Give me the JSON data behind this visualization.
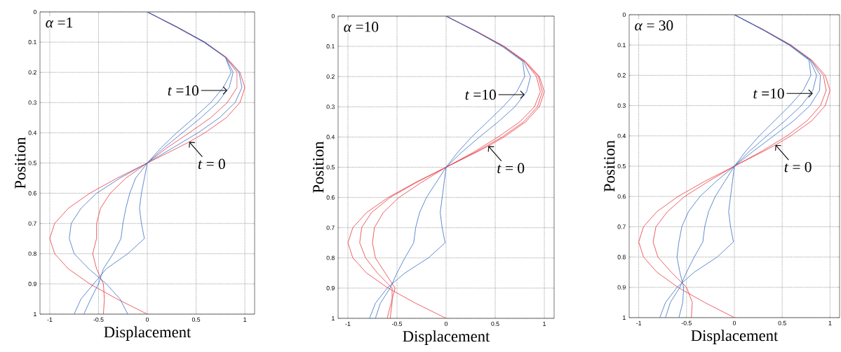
{
  "chart_data": [
    {
      "type": "line",
      "xlabel": "Displacement",
      "ylabel": "Position",
      "xlim": [
        -1.1,
        1.1
      ],
      "ylim": [
        1,
        0
      ],
      "xticks": [
        -1,
        -0.5,
        0,
        0.5,
        1
      ],
      "yticks": [
        0,
        0.1,
        0.2,
        0.3,
        0.4,
        0.5,
        0.6,
        0.7,
        0.8,
        0.9,
        1
      ],
      "grid": true,
      "annotations": [
        "*α* =1",
        {
          "text": "*t* =10",
          "x": 0.82,
          "y": 0.26
        },
        {
          "text": "*t* = 0",
          "x": 0.43,
          "y": 0.43
        }
      ],
      "series": [
        {
          "color": "#e8393f",
          "x": [
            0,
            0.31,
            0.59,
            0.81,
            0.95,
            1,
            0.95,
            0.81,
            0.59,
            0.43,
            0.31,
            0,
            -0.31,
            -0.59,
            -0.81,
            -0.95,
            -1,
            -0.95,
            -0.81,
            -0.59,
            -0.31,
            0
          ],
          "values": [
            0,
            0.05,
            0.1,
            0.15,
            0.2,
            0.25,
            0.3,
            0.35,
            0.4,
            0.43,
            0.45,
            0.5,
            0.55,
            0.6,
            0.65,
            0.7,
            0.75,
            0.8,
            0.85,
            0.9,
            0.95,
            1
          ]
        },
        {
          "color": "#3a6fc4",
          "x": [
            0,
            0.3,
            0.59,
            0.8,
            0.94,
            0.97,
            0.9,
            0.74,
            0.52,
            0.26,
            0,
            -0.28,
            -0.52,
            -0.68,
            -0.78,
            -0.8,
            -0.75,
            -0.6,
            -0.42,
            -0.28,
            -0.2
          ],
          "values": [
            0,
            0.05,
            0.1,
            0.15,
            0.2,
            0.25,
            0.3,
            0.35,
            0.4,
            0.45,
            0.5,
            0.55,
            0.6,
            0.65,
            0.7,
            0.75,
            0.8,
            0.85,
            0.9,
            0.95,
            1
          ]
        },
        {
          "color": "#e8393f",
          "x": [
            0,
            0.3,
            0.58,
            0.8,
            0.92,
            0.92,
            0.82,
            0.65,
            0.43,
            0.2,
            0,
            -0.22,
            -0.38,
            -0.48,
            -0.52,
            -0.52,
            -0.56,
            -0.52,
            -0.45,
            -0.44,
            -0.45
          ],
          "values": [
            0,
            0.05,
            0.1,
            0.15,
            0.2,
            0.25,
            0.3,
            0.35,
            0.4,
            0.45,
            0.5,
            0.55,
            0.6,
            0.65,
            0.7,
            0.75,
            0.8,
            0.85,
            0.9,
            0.95,
            1
          ]
        },
        {
          "color": "#3a6fc4",
          "x": [
            0,
            0.3,
            0.58,
            0.8,
            0.88,
            0.84,
            0.72,
            0.55,
            0.36,
            0.17,
            0,
            -0.12,
            -0.18,
            -0.22,
            -0.25,
            -0.27,
            -0.35,
            -0.45,
            -0.5,
            -0.58,
            -0.65
          ],
          "values": [
            0,
            0.05,
            0.1,
            0.15,
            0.2,
            0.25,
            0.3,
            0.35,
            0.4,
            0.45,
            0.5,
            0.55,
            0.6,
            0.65,
            0.7,
            0.75,
            0.8,
            0.85,
            0.9,
            0.95,
            1
          ]
        },
        {
          "color": "#3a6fc4",
          "x": [
            0,
            0.3,
            0.58,
            0.8,
            0.86,
            0.78,
            0.65,
            0.48,
            0.3,
            0.14,
            0,
            -0.03,
            -0.06,
            -0.08,
            -0.06,
            -0.03,
            -0.2,
            -0.42,
            -0.55,
            -0.68,
            -0.75
          ],
          "values": [
            0,
            0.05,
            0.1,
            0.15,
            0.2,
            0.25,
            0.3,
            0.35,
            0.4,
            0.45,
            0.5,
            0.55,
            0.6,
            0.65,
            0.7,
            0.75,
            0.8,
            0.85,
            0.9,
            0.95,
            1
          ]
        }
      ]
    },
    {
      "type": "line",
      "xlabel": "Displacement",
      "ylabel": "Position",
      "xlim": [
        -1.1,
        1.1
      ],
      "ylim": [
        1,
        0
      ],
      "xticks": [
        -1,
        -0.5,
        0,
        0.5,
        1
      ],
      "yticks": [
        0,
        0.1,
        0.2,
        0.3,
        0.4,
        0.5,
        0.6,
        0.7,
        0.8,
        0.9,
        1
      ],
      "grid": true,
      "annotations": [
        "*α* =10",
        {
          "text": "*t* =10",
          "x": 0.8,
          "y": 0.26
        },
        {
          "text": "*t* = 0",
          "x": 0.43,
          "y": 0.43
        }
      ],
      "series": [
        {
          "color": "#e8393f",
          "x": [
            0,
            0.31,
            0.59,
            0.81,
            0.95,
            1,
            0.95,
            0.81,
            0.59,
            0.43,
            0.31,
            0,
            -0.31,
            -0.59,
            -0.81,
            -0.95,
            -1,
            -0.95,
            -0.81,
            -0.59,
            -0.31,
            0
          ],
          "values": [
            0,
            0.05,
            0.1,
            0.15,
            0.2,
            0.25,
            0.3,
            0.35,
            0.4,
            0.43,
            0.45,
            0.5,
            0.55,
            0.6,
            0.65,
            0.7,
            0.75,
            0.8,
            0.85,
            0.9,
            0.95,
            1
          ]
        },
        {
          "color": "#e8393f",
          "x": [
            0,
            0.3,
            0.59,
            0.8,
            0.94,
            0.98,
            0.93,
            0.79,
            0.57,
            0.3,
            0,
            -0.3,
            -0.57,
            -0.76,
            -0.86,
            -0.88,
            -0.82,
            -0.7,
            -0.55,
            -0.55,
            -0.57
          ],
          "values": [
            0,
            0.05,
            0.1,
            0.15,
            0.2,
            0.25,
            0.3,
            0.35,
            0.4,
            0.45,
            0.5,
            0.55,
            0.6,
            0.65,
            0.7,
            0.75,
            0.8,
            0.85,
            0.9,
            0.95,
            1
          ]
        },
        {
          "color": "#e8393f",
          "x": [
            0,
            0.3,
            0.59,
            0.8,
            0.92,
            0.96,
            0.9,
            0.75,
            0.53,
            0.28,
            0,
            -0.25,
            -0.48,
            -0.64,
            -0.73,
            -0.75,
            -0.72,
            -0.62,
            -0.52,
            -0.56,
            -0.6
          ],
          "values": [
            0,
            0.05,
            0.1,
            0.15,
            0.2,
            0.25,
            0.3,
            0.35,
            0.4,
            0.45,
            0.5,
            0.55,
            0.6,
            0.65,
            0.7,
            0.75,
            0.8,
            0.85,
            0.9,
            0.95,
            1
          ]
        },
        {
          "color": "#3a6fc4",
          "x": [
            0,
            0.3,
            0.58,
            0.79,
            0.86,
            0.82,
            0.7,
            0.53,
            0.34,
            0.16,
            0,
            -0.1,
            -0.2,
            -0.27,
            -0.31,
            -0.33,
            -0.42,
            -0.5,
            -0.57,
            -0.67,
            -0.72
          ],
          "values": [
            0,
            0.05,
            0.1,
            0.15,
            0.2,
            0.25,
            0.3,
            0.35,
            0.4,
            0.45,
            0.5,
            0.55,
            0.6,
            0.65,
            0.7,
            0.75,
            0.8,
            0.85,
            0.9,
            0.95,
            1
          ]
        },
        {
          "color": "#3a6fc4",
          "x": [
            0,
            0.3,
            0.57,
            0.78,
            0.8,
            0.72,
            0.58,
            0.42,
            0.26,
            0.12,
            0,
            -0.02,
            -0.04,
            -0.06,
            -0.04,
            -0.01,
            -0.18,
            -0.42,
            -0.6,
            -0.72,
            -0.78
          ],
          "values": [
            0,
            0.05,
            0.1,
            0.15,
            0.2,
            0.25,
            0.3,
            0.35,
            0.4,
            0.45,
            0.5,
            0.55,
            0.6,
            0.65,
            0.7,
            0.75,
            0.8,
            0.85,
            0.9,
            0.95,
            1
          ]
        }
      ]
    },
    {
      "type": "line",
      "xlabel": "Displacement",
      "ylabel": "Position",
      "xlim": [
        -1.1,
        1.1
      ],
      "ylim": [
        1,
        0
      ],
      "xticks": [
        -1,
        -0.5,
        0,
        0.5,
        1
      ],
      "yticks": [
        0,
        0.1,
        0.2,
        0.3,
        0.4,
        0.5,
        0.6,
        0.7,
        0.8,
        0.9,
        1
      ],
      "grid": true,
      "annotations": [
        "*α* = 30",
        {
          "text": "*t* =10",
          "x": 0.82,
          "y": 0.26
        },
        {
          "text": "*t* = 0",
          "x": 0.43,
          "y": 0.43
        }
      ],
      "series": [
        {
          "color": "#e8393f",
          "x": [
            0,
            0.31,
            0.59,
            0.81,
            0.95,
            1,
            0.95,
            0.81,
            0.59,
            0.43,
            0.31,
            -0.31,
            -0.59,
            -0.81,
            -0.95,
            -1,
            -0.95,
            -0.81,
            -0.59,
            -0.31,
            0
          ],
          "values": [
            0,
            0.05,
            0.1,
            0.15,
            0.2,
            0.25,
            0.3,
            0.35,
            0.4,
            0.43,
            0.45,
            0.55,
            0.6,
            0.65,
            0.7,
            0.75,
            0.8,
            0.85,
            0.9,
            0.95,
            1
          ]
        },
        {
          "color": "#e8393f",
          "x": [
            0,
            0.3,
            0.59,
            0.8,
            0.93,
            0.96,
            0.9,
            0.76,
            0.55,
            0.29,
            0,
            -0.27,
            -0.52,
            -0.7,
            -0.82,
            -0.85,
            -0.8,
            -0.66,
            -0.5,
            -0.44,
            -0.45
          ],
          "values": [
            0,
            0.05,
            0.1,
            0.15,
            0.2,
            0.25,
            0.3,
            0.35,
            0.4,
            0.45,
            0.5,
            0.55,
            0.6,
            0.65,
            0.7,
            0.75,
            0.8,
            0.85,
            0.9,
            0.95,
            1
          ]
        },
        {
          "color": "#3a6fc4",
          "x": [
            0,
            0.3,
            0.58,
            0.8,
            0.9,
            0.89,
            0.79,
            0.62,
            0.41,
            0.2,
            0,
            -0.19,
            -0.36,
            -0.48,
            -0.55,
            -0.58,
            -0.6,
            -0.57,
            -0.53,
            -0.54,
            -0.58
          ],
          "values": [
            0,
            0.05,
            0.1,
            0.15,
            0.2,
            0.25,
            0.3,
            0.35,
            0.4,
            0.45,
            0.5,
            0.55,
            0.6,
            0.65,
            0.7,
            0.75,
            0.8,
            0.85,
            0.9,
            0.95,
            1
          ]
        },
        {
          "color": "#3a6fc4",
          "x": [
            0,
            0.3,
            0.58,
            0.79,
            0.86,
            0.82,
            0.7,
            0.53,
            0.34,
            0.16,
            0,
            -0.1,
            -0.2,
            -0.27,
            -0.31,
            -0.33,
            -0.42,
            -0.5,
            -0.57,
            -0.67,
            -0.72
          ],
          "values": [
            0,
            0.05,
            0.1,
            0.15,
            0.2,
            0.25,
            0.3,
            0.35,
            0.4,
            0.45,
            0.5,
            0.55,
            0.6,
            0.65,
            0.7,
            0.75,
            0.8,
            0.85,
            0.9,
            0.95,
            1
          ]
        },
        {
          "color": "#3a6fc4",
          "x": [
            0,
            0.3,
            0.57,
            0.78,
            0.8,
            0.72,
            0.58,
            0.42,
            0.26,
            0.12,
            0,
            -0.02,
            -0.04,
            -0.06,
            -0.04,
            -0.01,
            -0.18,
            -0.42,
            -0.6,
            -0.72,
            -0.78
          ],
          "values": [
            0,
            0.05,
            0.1,
            0.15,
            0.2,
            0.25,
            0.3,
            0.35,
            0.4,
            0.45,
            0.5,
            0.55,
            0.6,
            0.65,
            0.7,
            0.75,
            0.8,
            0.85,
            0.9,
            0.95,
            1
          ]
        }
      ]
    }
  ]
}
